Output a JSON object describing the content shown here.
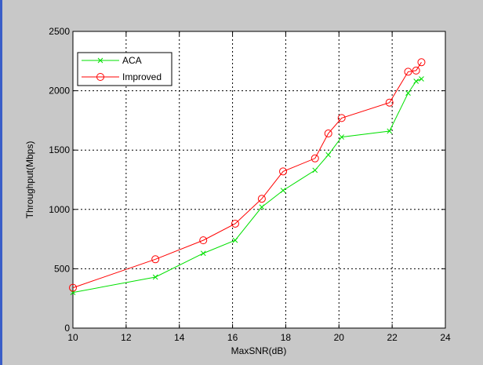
{
  "chart_data": {
    "type": "line",
    "title": "",
    "xlabel": "MaxSNR(dB)",
    "ylabel": "Throughput(Mbps)",
    "xlim": [
      10,
      24
    ],
    "ylim": [
      0,
      2500
    ],
    "xticks": [
      10,
      12,
      14,
      16,
      18,
      20,
      22,
      24
    ],
    "yticks": [
      0,
      500,
      1000,
      1500,
      2000,
      2500
    ],
    "grid": true,
    "legend_position": "top-left",
    "series": [
      {
        "name": "ACA",
        "color": "#00e000",
        "marker": "x",
        "x": [
          10.0,
          13.1,
          14.9,
          16.1,
          17.1,
          17.9,
          19.1,
          19.6,
          20.1,
          21.9,
          22.6,
          22.9,
          23.1
        ],
        "y": [
          300,
          430,
          630,
          740,
          1020,
          1160,
          1330,
          1460,
          1610,
          1660,
          1980,
          2080,
          2100
        ]
      },
      {
        "name": "Improved",
        "color": "#ff0000",
        "marker": "o",
        "x": [
          10.0,
          13.1,
          14.9,
          16.1,
          17.1,
          17.9,
          19.1,
          19.6,
          20.1,
          21.9,
          22.6,
          22.9,
          23.1
        ],
        "y": [
          340,
          580,
          740,
          880,
          1090,
          1320,
          1430,
          1640,
          1770,
          1900,
          2160,
          2170,
          2240
        ]
      }
    ]
  }
}
